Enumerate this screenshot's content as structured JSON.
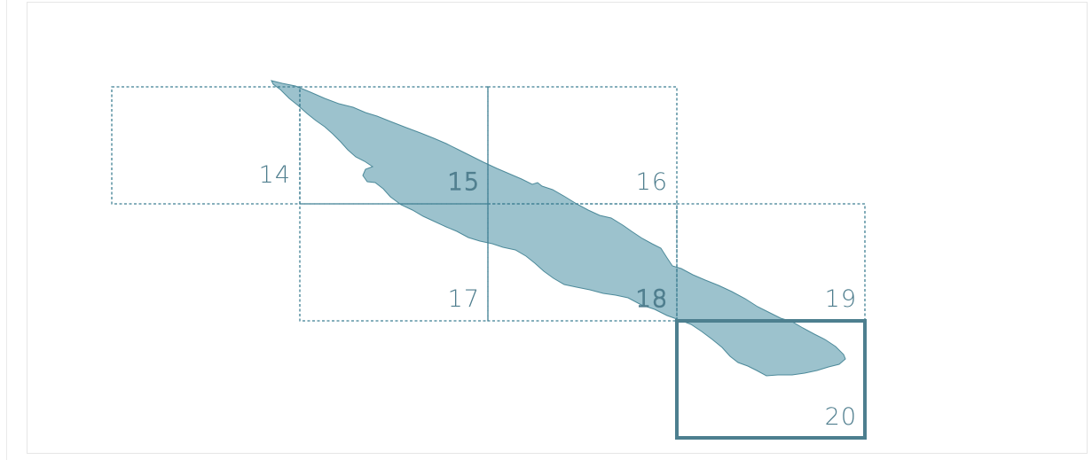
{
  "colors": {
    "island_fill": "#9cc2cd",
    "island_stroke": "#4d8a9a",
    "grid_line": "#3f7f93",
    "label": "#4f7e8e",
    "selected_border": "#4d7f8f"
  },
  "map": {
    "selected_tile": "20",
    "tiles": [
      {
        "id": "14",
        "label": "14"
      },
      {
        "id": "15",
        "label": "15"
      },
      {
        "id": "16",
        "label": "16"
      },
      {
        "id": "17",
        "label": "17"
      },
      {
        "id": "18",
        "label": "18"
      },
      {
        "id": "19",
        "label": "19"
      },
      {
        "id": "20",
        "label": "20"
      }
    ]
  }
}
